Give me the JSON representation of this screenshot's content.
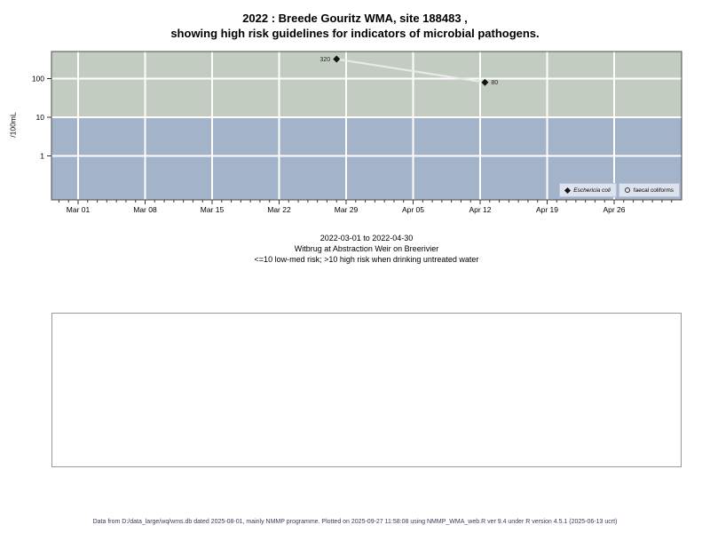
{
  "page": {
    "title_line1": "2022 : Breede Gouritz WMA, site 188483 ,",
    "title_line2": "showing high risk guidelines for indicators of microbial pathogens.",
    "footer": "Data from D:/data_large/wq/wms.db dated 2025-08-01, mainly NMMP programme. Plotted on 2025-09-27 11:58:08 using NMMP_WMA_web.R ver 9.4 under R version 4.5.1 (2025-06-13 ucrt)"
  },
  "chart_data": {
    "type": "scatter",
    "y_scale": "log10",
    "ylabel": "/100mL",
    "y_ticks": [
      100,
      10,
      1
    ],
    "x_tick_labels": [
      "Mar 01",
      "Mar 08",
      "Mar 15",
      "Mar 22",
      "Mar 29",
      "Apr 05",
      "Apr 12",
      "Apr 19",
      "Apr 26"
    ],
    "x_start_date": "2022-03-01",
    "x_minor_tick_days": [
      -2,
      62
    ],
    "bands": [
      {
        "name": "high-risk-band",
        "label": ">10 high risk",
        "color": "#c3ccc0"
      },
      {
        "name": "low-med-risk-band",
        "label": "<=10 low-med risk",
        "color": "#a3b3ca"
      }
    ],
    "series": [
      {
        "name": "Eschericia coli",
        "marker": "filled-diamond",
        "marker_color": "#141414",
        "line_color": "#e9e9e9",
        "points": [
          {
            "date": "2022-03-28",
            "day": 27,
            "value": 320,
            "label": "320",
            "label_side": "left"
          },
          {
            "date": "2022-04-12",
            "day": 42.5,
            "value": 80,
            "label": "80",
            "label_side": "right"
          }
        ]
      },
      {
        "name": "faecal coliforms",
        "marker": "open-circle",
        "marker_color": "#333333",
        "points": []
      }
    ],
    "subtitle_lines": [
      "2022-03-01 to 2022-04-30",
      "Witbrug at Abstraction Weir on Breerivier",
      "<=10 low-med risk; >10 high risk when drinking untreated water"
    ]
  }
}
